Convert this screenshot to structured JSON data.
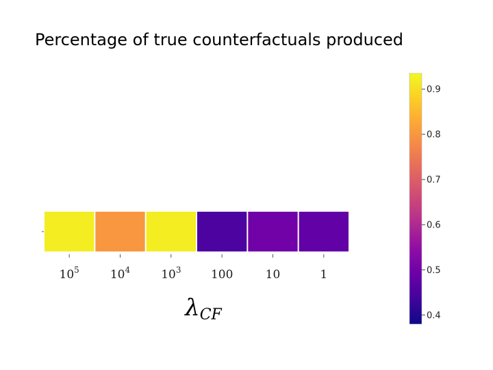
{
  "chart_data": {
    "type": "heatmap",
    "title": "Percentage of true counterfactuals produced",
    "categories": [
      {
        "base": "10",
        "exp": "5"
      },
      {
        "base": "10",
        "exp": "4"
      },
      {
        "base": "10",
        "exp": "3"
      },
      {
        "base": "100",
        "exp": ""
      },
      {
        "base": "10",
        "exp": ""
      },
      {
        "base": "1",
        "exp": ""
      }
    ],
    "values": [
      0.92,
      0.8,
      0.92,
      0.45,
      0.5,
      0.48
    ],
    "xlabel": {
      "symbol": "λ",
      "subscript": "CF"
    },
    "ylabel": "",
    "colorbar": {
      "range": [
        0.38,
        0.935
      ],
      "ticks": [
        0.4,
        0.5,
        0.6,
        0.7,
        0.8,
        0.9
      ],
      "tick_labels": [
        "0.4",
        "0.5",
        "0.6",
        "0.7",
        "0.8",
        "0.9"
      ],
      "colormap": "plasma",
      "placement": "right"
    },
    "grid": false
  }
}
